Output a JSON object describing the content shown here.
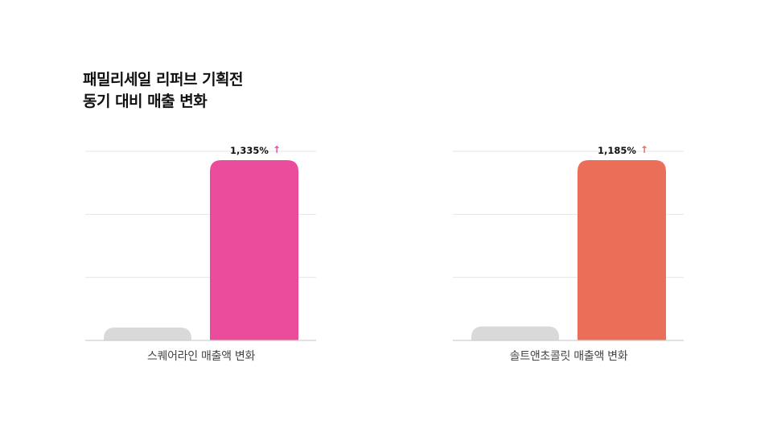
{
  "title": {
    "line1": "패밀리세일 리퍼브 기획전",
    "line2": "동기 대비 매출 변화"
  },
  "arrow_glyph": "↑",
  "chart_data": [
    {
      "type": "bar",
      "categories": [
        "",
        ""
      ],
      "values": [
        1,
        14.35
      ],
      "ylim": [
        0,
        14.35
      ],
      "grid": true,
      "gridlines": 3,
      "colors": [
        "#d9d9d9",
        "#ea4c9b"
      ],
      "arrow_color": "#ea4c9b",
      "data_label": "1,335%",
      "xlabel": "스퀘어라인 매출액 변화"
    },
    {
      "type": "bar",
      "categories": [
        "",
        ""
      ],
      "values": [
        1,
        12.85
      ],
      "ylim": [
        0,
        12.85
      ],
      "grid": true,
      "gridlines": 3,
      "colors": [
        "#d9d9d9",
        "#ea6e58"
      ],
      "arrow_color": "#ea6e58",
      "data_label": "1,185%",
      "xlabel": "솔트앤초콜릿 매출액 변화"
    }
  ]
}
